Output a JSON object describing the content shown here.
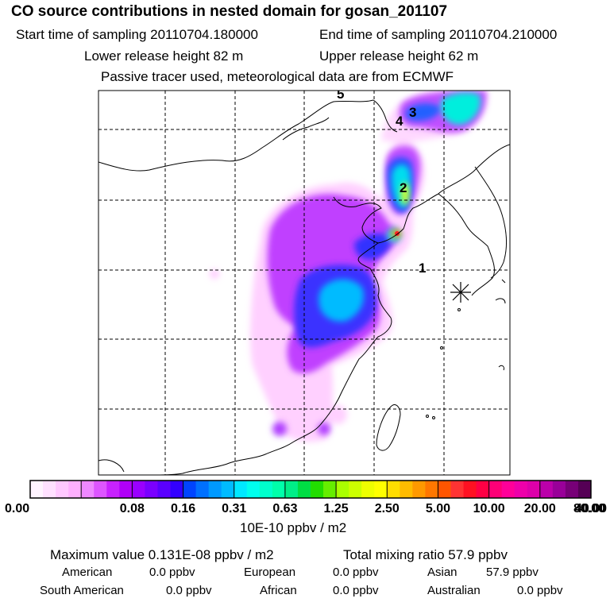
{
  "chart_data": {
    "type": "heatmap",
    "title": "CO  source contributions in nested domain for gosan_201107",
    "start_label": "Start time of sampling 20110704.180000",
    "end_label": "End time of sampling 20110704.210000",
    "lower_label": "Lower release height   82 m",
    "upper_label": "Upper release height   62 m",
    "note": "Passive tracer used, meteorological data are from ECMWF",
    "colorbar": {
      "ticks": [
        "0.00",
        "0.08",
        "0.16",
        "0.31",
        "0.63",
        "1.25",
        "2.50",
        "5.00",
        "10.00",
        "20.00",
        "40.00",
        "80.00"
      ],
      "unit": "10E-10 ppbv / m2",
      "colors": [
        [
          "#fff4ff",
          "#ffe0ff",
          "#ffc8ff",
          "#ffb0ff"
        ],
        [
          "#ee88ff",
          "#dd55ff",
          "#c822ff",
          "#b000f8"
        ],
        [
          "#9a00ff",
          "#7a00ff",
          "#5a00ff",
          "#3300ff"
        ],
        [
          "#0044ff",
          "#0070ff",
          "#0099ff",
          "#00bbff"
        ],
        [
          "#00e8ff",
          "#00ffee",
          "#00ffcc",
          "#00ffaa"
        ],
        [
          "#00ee88",
          "#00dd44",
          "#22dd00",
          "#66ee00"
        ],
        [
          "#aaff00",
          "#ccff00",
          "#eeff00",
          "#ffff00"
        ],
        [
          "#ffdd00",
          "#ffbb00",
          "#ff9900",
          "#ff7700"
        ],
        [
          "#ff5500",
          "#ff3333",
          "#ff1122",
          "#ff0044"
        ],
        [
          "#ff0077",
          "#ff0099",
          "#ee00aa",
          "#dd00aa"
        ],
        [
          "#bb00aa",
          "#990099",
          "#770077",
          "#550055"
        ]
      ]
    },
    "map_labels": [
      "1",
      "2",
      "3",
      "4",
      "5"
    ],
    "maximum_line": "Maximum value  0.131E-08 ppbv / m2",
    "total_line": "Total mixing ratio       57.9 ppbv",
    "regions": [
      {
        "name": "American",
        "value": "0.0 ppbv"
      },
      {
        "name": "European",
        "value": "0.0 ppbv"
      },
      {
        "name": "Asian",
        "value": "57.9 ppbv"
      },
      {
        "name": "South American",
        "value": "0.0 ppbv"
      },
      {
        "name": "African",
        "value": "0.0 ppbv"
      },
      {
        "name": "Australian",
        "value": "0.0 ppbv"
      }
    ]
  }
}
